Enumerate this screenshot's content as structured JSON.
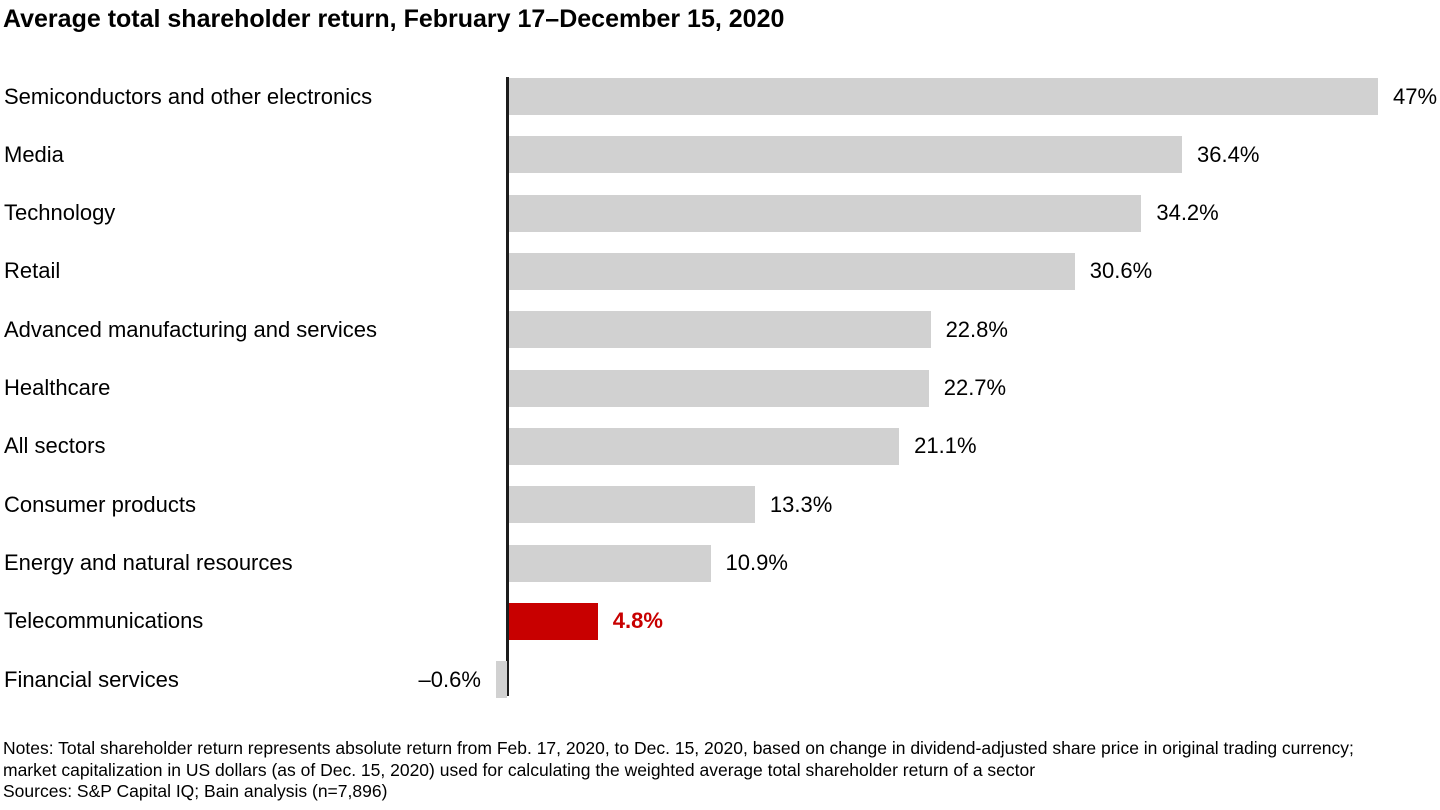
{
  "title": "Average total shareholder return, February 17–December 15, 2020",
  "chart_data": {
    "type": "bar",
    "orientation": "horizontal",
    "title": "Average total shareholder return, February 17–December 15, 2020",
    "categories": [
      "Semiconductors and other electronics",
      "Media",
      "Technology",
      "Retail",
      "Advanced manufacturing and services",
      "Healthcare",
      "All sectors",
      "Consumer products",
      "Energy and natural resources",
      "Telecommunications",
      "Financial services"
    ],
    "values": [
      47,
      36.4,
      34.2,
      30.6,
      22.8,
      22.7,
      21.1,
      13.3,
      10.9,
      4.8,
      -0.6
    ],
    "value_labels": [
      "47%",
      "36.4%",
      "34.2%",
      "30.6%",
      "22.8%",
      "22.7%",
      "21.1%",
      "13.3%",
      "10.9%",
      "4.8%",
      "–0.6%"
    ],
    "unit": "%",
    "highlight_category": "Telecommunications",
    "highlight_index": 9,
    "xlim": [
      -2,
      50
    ],
    "grid": false,
    "legend": false,
    "value_label_position": "outside-end",
    "colors": {
      "bar": "#d1d1d1",
      "highlight_bar": "#c80000",
      "axis": "#1c1c1c",
      "value_text": "#000000",
      "highlight_value_text": "#c80000",
      "category_text": "#000000"
    }
  },
  "notes": {
    "text": "Notes: Total shareholder return represents absolute return from Feb. 17, 2020, to Dec. 15, 2020, based on change in dividend-adjusted share price in original trading currency; market capitalization in US dollars (as of Dec. 15, 2020) used for calculating the weighted average total shareholder return of a sector",
    "sources": "Sources: S&P Capital IQ; Bain analysis (n=7,896)"
  }
}
